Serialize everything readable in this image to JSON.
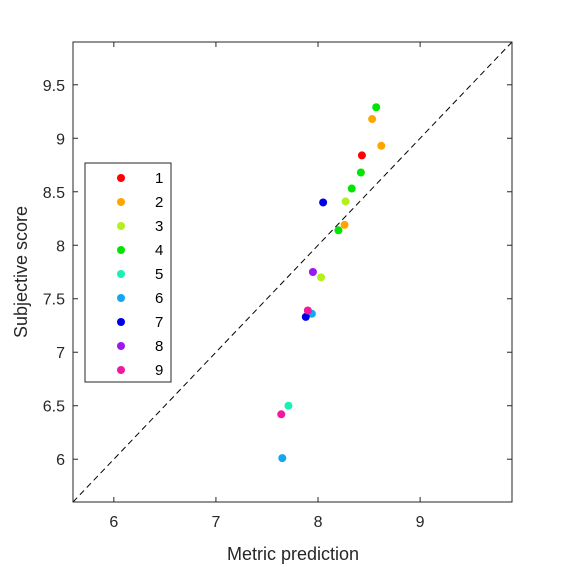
{
  "chart_data": {
    "type": "scatter",
    "title": "",
    "xlabel": "Metric prediction",
    "ylabel": "Subjective score",
    "xlim": [
      5.6,
      9.9
    ],
    "ylim": [
      5.6,
      9.9
    ],
    "xticks": [
      "6",
      "7",
      "8",
      "9"
    ],
    "yticks": [
      "6",
      "6.5",
      "7",
      "7.5",
      "8",
      "8.5",
      "9",
      "9.5"
    ],
    "grid": false,
    "reference_line": "y = x (dashed)",
    "legend_position": "left",
    "series": [
      {
        "name": "1",
        "color": "#ff0000",
        "points": [
          {
            "x": 8.43,
            "y": 8.84
          }
        ]
      },
      {
        "name": "2",
        "color": "#ffa500",
        "points": [
          {
            "x": 8.53,
            "y": 9.18
          },
          {
            "x": 8.62,
            "y": 8.93
          },
          {
            "x": 8.26,
            "y": 8.19
          }
        ]
      },
      {
        "name": "3",
        "color": "#b2f01e",
        "points": [
          {
            "x": 8.27,
            "y": 8.41
          },
          {
            "x": 8.03,
            "y": 7.7
          }
        ]
      },
      {
        "name": "4",
        "color": "#00e600",
        "points": [
          {
            "x": 8.57,
            "y": 9.29
          },
          {
            "x": 8.42,
            "y": 8.68
          },
          {
            "x": 8.33,
            "y": 8.53
          },
          {
            "x": 8.2,
            "y": 8.14
          }
        ]
      },
      {
        "name": "5",
        "color": "#19f0b4",
        "points": [
          {
            "x": 7.71,
            "y": 6.5
          }
        ]
      },
      {
        "name": "6",
        "color": "#12a8f0",
        "points": [
          {
            "x": 7.94,
            "y": 7.36
          },
          {
            "x": 7.65,
            "y": 6.01
          }
        ]
      },
      {
        "name": "7",
        "color": "#0000e6",
        "points": [
          {
            "x": 8.05,
            "y": 8.4
          },
          {
            "x": 7.88,
            "y": 7.33
          }
        ]
      },
      {
        "name": "8",
        "color": "#9b19f0",
        "points": [
          {
            "x": 7.95,
            "y": 7.75
          }
        ]
      },
      {
        "name": "9",
        "color": "#f019a0",
        "points": [
          {
            "x": 7.9,
            "y": 7.39
          },
          {
            "x": 7.64,
            "y": 6.42
          }
        ]
      }
    ]
  }
}
